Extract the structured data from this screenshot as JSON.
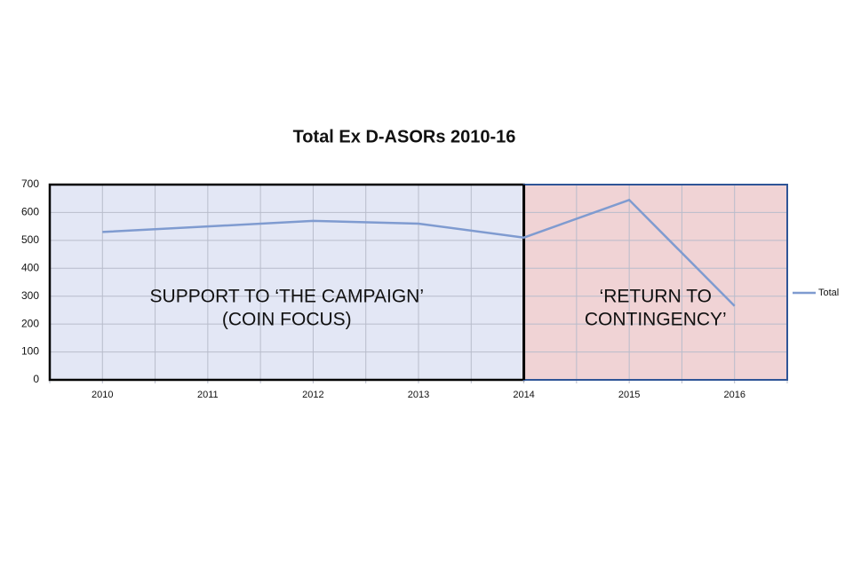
{
  "chart_data": {
    "type": "line",
    "title": "Total Ex D-ASORs 2010-16",
    "categories": [
      "2010",
      "2011",
      "2012",
      "2013",
      "2014",
      "2015",
      "2016"
    ],
    "series": [
      {
        "name": "Total",
        "color": "#7f9bd0",
        "values": [
          530,
          550,
          570,
          560,
          510,
          645,
          265
        ]
      }
    ],
    "ylim": [
      0,
      700
    ],
    "yticks": [
      0,
      100,
      200,
      300,
      400,
      500,
      600,
      700
    ],
    "grid": true,
    "legend": "right",
    "annotations": [
      {
        "lines": [
          "SUPPORT TO ‘THE CAMPAIGN’",
          "(COIN FOCUS)"
        ]
      },
      {
        "lines": [
          "‘RETURN TO",
          "CONTINGENCY’"
        ]
      }
    ]
  }
}
